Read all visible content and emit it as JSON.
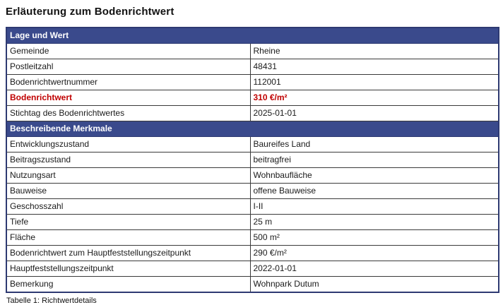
{
  "page": {
    "title": "Erläuterung zum Bodenrichtwert",
    "caption": "Tabelle 1: Richtwertdetails"
  },
  "colors": {
    "section_header_bg": "#3a4a8c",
    "section_header_text": "#ffffff",
    "highlight_red": "#c00000",
    "outer_border": "#2e3a72",
    "inner_border": "#3a3a3a"
  },
  "table": {
    "sections": [
      {
        "header": "Lage und Wert",
        "rows": [
          {
            "label": "Gemeinde",
            "value": "Rheine",
            "highlight": false
          },
          {
            "label": "Postleitzahl",
            "value": "48431",
            "highlight": false
          },
          {
            "label": "Bodenrichtwertnummer",
            "value": "112001",
            "highlight": false
          },
          {
            "label": "Bodenrichtwert",
            "value": "310 €/m²",
            "highlight": true
          },
          {
            "label": "Stichtag des Bodenrichtwertes",
            "value": "2025-01-01",
            "highlight": false
          }
        ]
      },
      {
        "header": "Beschreibende Merkmale",
        "rows": [
          {
            "label": "Entwicklungszustand",
            "value": "Baureifes Land",
            "highlight": false
          },
          {
            "label": "Beitragszustand",
            "value": "beitragfrei",
            "highlight": false
          },
          {
            "label": "Nutzungsart",
            "value": "Wohnbaufläche",
            "highlight": false
          },
          {
            "label": "Bauweise",
            "value": "offene Bauweise",
            "highlight": false
          },
          {
            "label": "Geschosszahl",
            "value": "I-II",
            "highlight": false
          },
          {
            "label": "Tiefe",
            "value": "25 m",
            "highlight": false
          },
          {
            "label": "Fläche",
            "value": "500 m²",
            "highlight": false
          },
          {
            "label": "Bodenrichtwert zum Hauptfeststellungszeitpunkt",
            "value": "290 €/m²",
            "highlight": false
          },
          {
            "label": "Hauptfeststellungszeitpunkt",
            "value": "2022-01-01",
            "highlight": false
          },
          {
            "label": "Bemerkung",
            "value": "Wohnpark Dutum",
            "highlight": false
          }
        ]
      }
    ]
  }
}
